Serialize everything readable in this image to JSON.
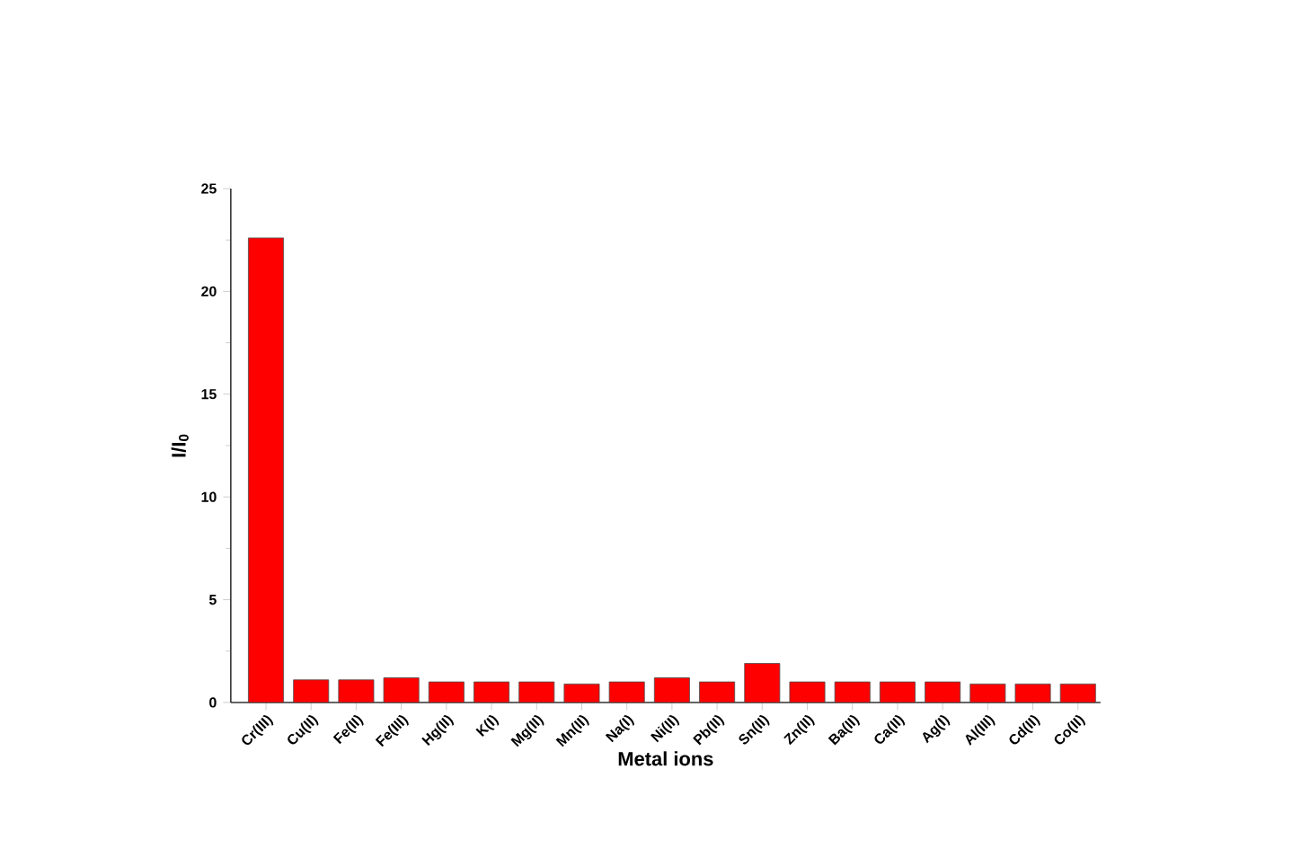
{
  "chart_data": {
    "type": "bar",
    "categories": [
      "Cr(III)",
      "Cu(II)",
      "Fe(II)",
      "Fe(III)",
      "Hg(II)",
      "K(I)",
      "Mg(II)",
      "Mn(II)",
      "Na(I)",
      "Ni(II)",
      "Pb(II)",
      "Sn(II)",
      "Zn(II)",
      "Ba(II)",
      "Ca(II)",
      "Ag(I)",
      "Al(III)",
      "Cd(II)",
      "Co(II)"
    ],
    "values": [
      22.6,
      1.1,
      1.1,
      1.2,
      1.0,
      1.0,
      1.0,
      0.9,
      1.0,
      1.2,
      1.0,
      1.9,
      1.0,
      1.0,
      1.0,
      1.0,
      0.9,
      0.9,
      0.9
    ],
    "color": "#ff0000",
    "ylim": [
      0,
      25
    ],
    "yticks": [
      0,
      5,
      10,
      15,
      20,
      25
    ],
    "xlabel": "Metal ions",
    "ylabel": "I/I$_{0}$"
  }
}
